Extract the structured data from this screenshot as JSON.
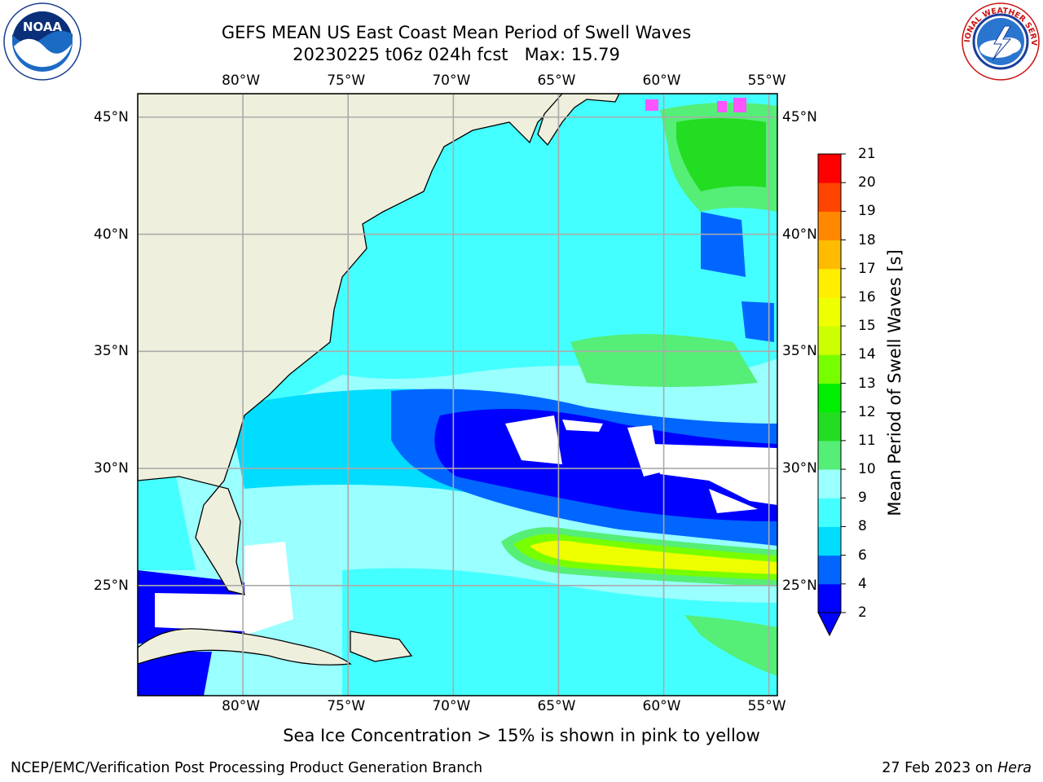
{
  "title": {
    "line1": "GEFS MEAN US East Coast Mean Period of Swell Waves",
    "line2": "20230225 t06z 024h fcst   Max: 15.79"
  },
  "axes": {
    "lon_ticks": [
      "80°W",
      "75°W",
      "70°W",
      "65°W",
      "60°W",
      "55°W"
    ],
    "lat_ticks": [
      "45°N",
      "40°N",
      "35°N",
      "30°N",
      "25°N"
    ],
    "lon_values": [
      -80,
      -75,
      -70,
      -65,
      -60,
      -55
    ],
    "lat_values": [
      45,
      40,
      35,
      30,
      25
    ]
  },
  "map": {
    "lon_range": [
      -85,
      -54.6
    ],
    "lat_range": [
      20.3,
      46
    ]
  },
  "colorbar": {
    "title": "Mean Period of Swell Waves [s]",
    "ticks": [
      "2",
      "4",
      "6",
      "8",
      "9",
      "10",
      "11",
      "12",
      "13",
      "14",
      "15",
      "16",
      "17",
      "18",
      "19",
      "20",
      "21"
    ],
    "levels": [
      2,
      4,
      6,
      8,
      9,
      10,
      11,
      12,
      13,
      14,
      15,
      16,
      17,
      18,
      19,
      20,
      21
    ],
    "colors": [
      "#0000ff",
      "#0066ff",
      "#00ddff",
      "#44ffff",
      "#99ffff",
      "#55ee77",
      "#22dd22",
      "#00ee00",
      "#77ff00",
      "#ccff00",
      "#eeff00",
      "#ffee00",
      "#ffbb00",
      "#ff8800",
      "#ff4400",
      "#ff0000"
    ]
  },
  "caption": "Sea Ice Concentration > 15% is shown in pink to yellow",
  "footer": {
    "left": "NCEP/EMC/Verification Post Processing Product Generation Branch",
    "right_prefix": "27 Feb 2023 on ",
    "right_italic": "Hera"
  },
  "logos": {
    "noaa_text": "NOAA",
    "nws_text": "NATIONAL WEATHER SERVICE"
  }
}
